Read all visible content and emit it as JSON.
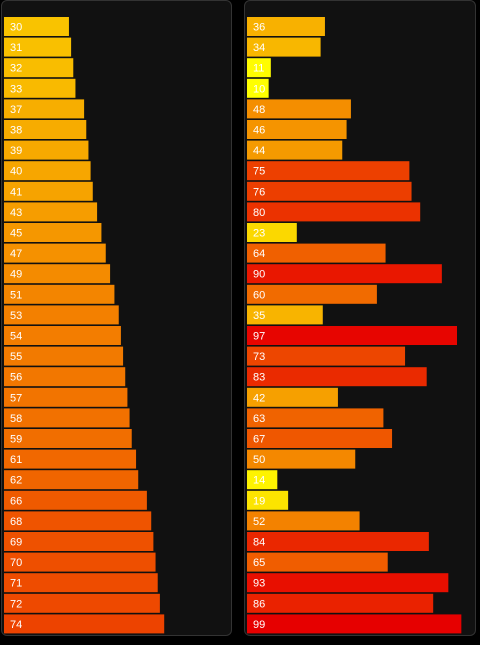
{
  "chart_data": [
    {
      "type": "bar",
      "orientation": "horizontal",
      "sorted": "ascending",
      "value_labels": true,
      "color_scale": "yellow-orange-red by value",
      "values": [
        30,
        31,
        32,
        33,
        37,
        38,
        39,
        40,
        41,
        43,
        45,
        47,
        49,
        51,
        53,
        54,
        55,
        56,
        57,
        58,
        59,
        61,
        62,
        66,
        68,
        69,
        70,
        71,
        72,
        74
      ],
      "xlim": [
        0,
        100
      ]
    },
    {
      "type": "bar",
      "orientation": "horizontal",
      "sorted": "none",
      "value_labels": true,
      "color_scale": "yellow-orange-red by value",
      "values": [
        36,
        34,
        11,
        10,
        48,
        46,
        44,
        75,
        76,
        80,
        23,
        64,
        90,
        60,
        35,
        97,
        73,
        83,
        42,
        63,
        67,
        50,
        14,
        19,
        52,
        84,
        65,
        93,
        86,
        99
      ],
      "xlim": [
        0,
        100
      ]
    }
  ]
}
